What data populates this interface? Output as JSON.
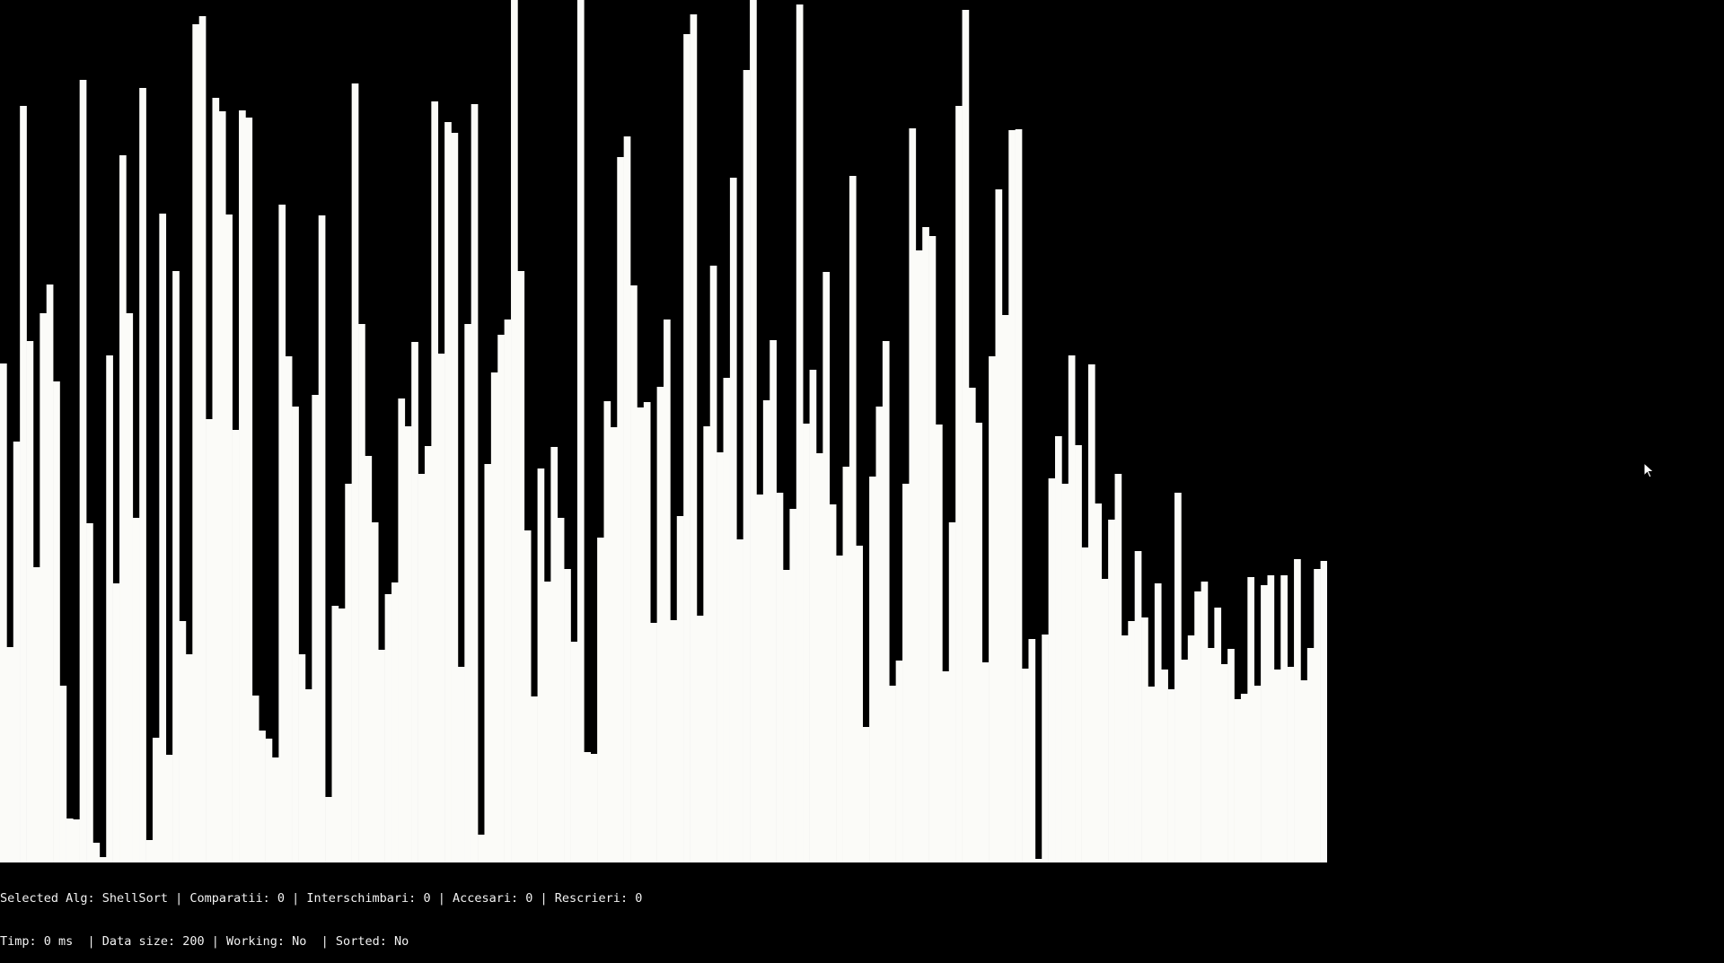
{
  "status": {
    "alg_label": "Selected Alg: ",
    "alg": "ShellSort",
    "comparatii_label": " | Comparatii: ",
    "comparatii": "0",
    "interschimbari_label": " | Interschimbari: ",
    "interschimbari": "0",
    "accesari_label": " | Accesari: ",
    "accesari": "0",
    "rescrieri_label": " | Rescrieri: ",
    "rescrieri": "0",
    "timp_label": "Timp: ",
    "timp": "0 ms",
    "size_label": "  | Data size: ",
    "size": "200",
    "working_label": " | Working: ",
    "working": "No",
    "sorted_label": "  | Sorted: ",
    "sorted": "No"
  },
  "colors": {
    "bar": "#fbfbf8",
    "background": "#000000",
    "text": "#f2f2f2"
  },
  "chart_data": {
    "type": "bar",
    "title": "",
    "ylim": [
      0,
      961
    ],
    "values": [
      556,
      240,
      469,
      843,
      581,
      329,
      612,
      644,
      536,
      197,
      49,
      48,
      872,
      378,
      22,
      6,
      565,
      311,
      788,
      612,
      384,
      863,
      25,
      139,
      723,
      120,
      659,
      269,
      232,
      934,
      943,
      494,
      852,
      837,
      722,
      482,
      838,
      830,
      186,
      147,
      138,
      117,
      733,
      564,
      508,
      232,
      193,
      521,
      721,
      73,
      286,
      283,
      422,
      868,
      600,
      453,
      379,
      237,
      299,
      312,
      517,
      486,
      580,
      433,
      464,
      848,
      567,
      825,
      813,
      218,
      600,
      845,
      31,
      444,
      546,
      588,
      605,
      989,
      659,
      370,
      185,
      439,
      313,
      463,
      384,
      327,
      246,
      983,
      123,
      121,
      362,
      514,
      485,
      786,
      809,
      643,
      507,
      513,
      267,
      530,
      605,
      270,
      386,
      923,
      945,
      275,
      486,
      665,
      457,
      540,
      763,
      360,
      883,
      976,
      410,
      515,
      582,
      412,
      326,
      394,
      956,
      489,
      549,
      456,
      658,
      399,
      342,
      441,
      765,
      353,
      151,
      430,
      508,
      581,
      197,
      225,
      422,
      818,
      682,
      708,
      698,
      488,
      213,
      379,
      843,
      950,
      529,
      490,
      223,
      564,
      750,
      610,
      816,
      817,
      216,
      249,
      4,
      254,
      428,
      475,
      422,
      565,
      465,
      351,
      555,
      400,
      316,
      382,
      433,
      253,
      269,
      347,
      273,
      196,
      311,
      215,
      193,
      412,
      226,
      253,
      302,
      313,
      239,
      284,
      221,
      238,
      182,
      188,
      318,
      197,
      309,
      320,
      215,
      320,
      218,
      338,
      203,
      239,
      327,
      336
    ]
  }
}
